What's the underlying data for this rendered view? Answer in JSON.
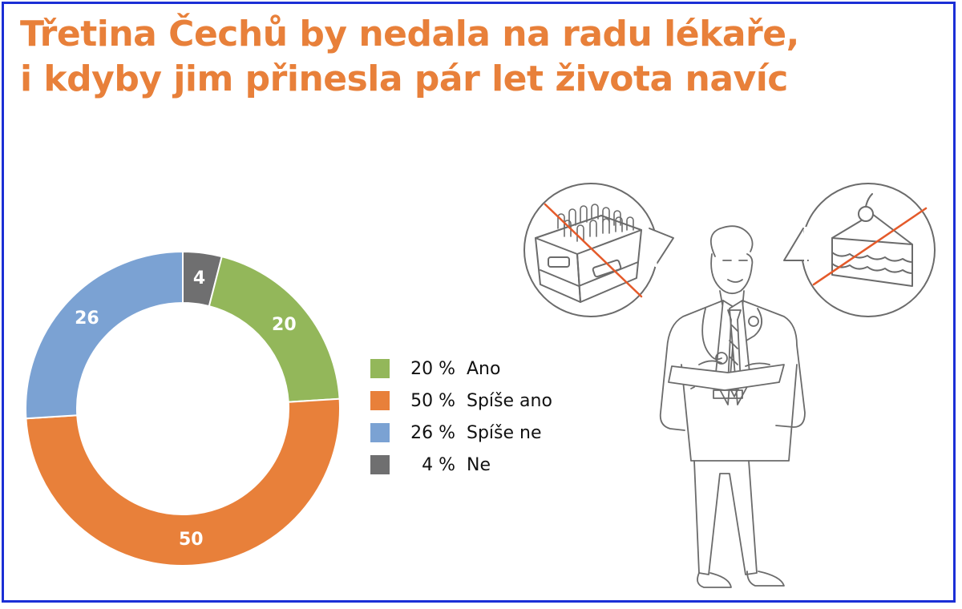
{
  "title": {
    "line1": "Třetina Čechů by nedala na radu lékaře,",
    "line2": "i kdyby jim přinesla pár let života navíc"
  },
  "chart_data": {
    "type": "pie",
    "donut": true,
    "categories": [
      "Ne",
      "Ano",
      "Spíše ano",
      "Spíše ne"
    ],
    "values": [
      4,
      20,
      50,
      26
    ],
    "colors": [
      "#6f6f70",
      "#93b75a",
      "#e8803a",
      "#7ba2d3"
    ],
    "data_labels": [
      "4",
      "20",
      "50",
      "26"
    ],
    "start": "top, clockwise",
    "legend_position": "right"
  },
  "legend": [
    {
      "percent": "20 %",
      "label": "Ano",
      "color": "#93b75a"
    },
    {
      "percent": "50 %",
      "label": "Spíše ano",
      "color": "#e8803a"
    },
    {
      "percent": "26 %",
      "label": "Spíše ne",
      "color": "#7ba2d3"
    },
    {
      "percent": "4 %",
      "label": "Ne",
      "color": "#6f6f70"
    }
  ],
  "colors": {
    "title": "#e8803a",
    "frame": "#1b2fd6",
    "strike": "#e45a2a",
    "line_art": "#6b6b6b"
  },
  "illustration": {
    "figure": "doctor-icon",
    "left_bubble": "beer-crate-icon",
    "right_bubble": "cake-icon"
  }
}
